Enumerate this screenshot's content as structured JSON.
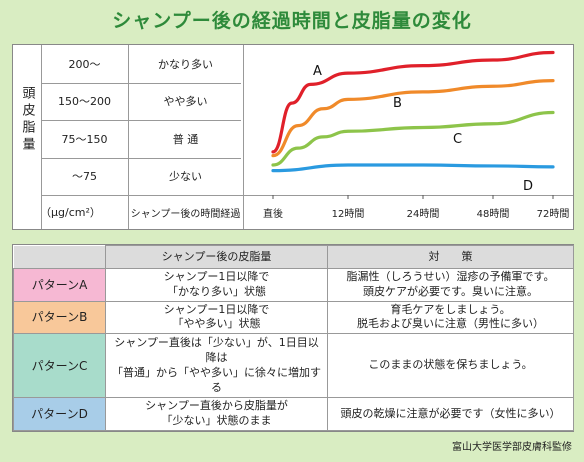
{
  "title": "シャンプー後の経過時間と皮脂量の変化",
  "chart_data": {
    "type": "line",
    "ylabel": "頭皮脂量",
    "unit_label": "（μg/cm²）",
    "xlabel": "シャンプー後の時間経過",
    "x_ticks": [
      "直後",
      "12時間",
      "24時間",
      "48時間",
      "72時間"
    ],
    "y_levels": [
      {
        "range": "200～",
        "label": "かなり多い"
      },
      {
        "range": "150～200",
        "label": "やや多い"
      },
      {
        "range": "75～150",
        "label": "普 通"
      },
      {
        "range": "～75",
        "label": "少ない"
      }
    ],
    "series": [
      {
        "name": "A",
        "color": "#e0202a",
        "x": [
          0,
          3,
          6,
          12,
          24,
          48,
          72
        ],
        "y": [
          2.3,
          4.9,
          5.9,
          6.5,
          6.9,
          7.2,
          7.6
        ]
      },
      {
        "name": "B",
        "color": "#f08a2a",
        "x": [
          0,
          4,
          8,
          12,
          24,
          48,
          72
        ],
        "y": [
          2.1,
          3.7,
          4.6,
          5.1,
          5.5,
          5.8,
          6.1
        ]
      },
      {
        "name": "C",
        "color": "#8dc44a",
        "x": [
          0,
          4,
          8,
          12,
          24,
          48,
          72
        ],
        "y": [
          1.6,
          2.5,
          3.1,
          3.4,
          3.6,
          3.8,
          4.4
        ]
      },
      {
        "name": "D",
        "color": "#2a9ae0",
        "x": [
          0,
          12,
          24,
          48,
          72
        ],
        "y": [
          1.3,
          1.6,
          1.6,
          1.55,
          1.5
        ]
      }
    ]
  },
  "table": {
    "headers": [
      "シャンプー後の皮脂量",
      "対　　策"
    ],
    "rows": [
      {
        "pattern": "パターンA",
        "color": "#f6b8d3",
        "amount": [
          "シャンプー1日以降で",
          "「かなり多い」状態"
        ],
        "measure": [
          "脂漏性（しろうせい）湿疹の予備軍です。",
          "頭皮ケアが必要です。臭いに注意。"
        ]
      },
      {
        "pattern": "パターンB",
        "color": "#f8c89a",
        "amount": [
          "シャンプー1日以降で",
          "「やや多い」状態"
        ],
        "measure": [
          "育毛ケアをしましょう。",
          "脱毛および臭いに注意（男性に多い）"
        ]
      },
      {
        "pattern": "パターンC",
        "color": "#a8dccb",
        "amount": [
          "シャンプー直後は「少ない」が、1日目以降は",
          "「普通」から「やや多い」に徐々に増加する"
        ],
        "measure": [
          "このままの状態を保ちましょう。"
        ]
      },
      {
        "pattern": "パターンD",
        "color": "#a8cde8",
        "amount": [
          "シャンプー直後から皮脂量が",
          "「少ない」状態のまま"
        ],
        "measure": [
          "頭皮の乾燥に注意が必要です（女性に多い）"
        ]
      }
    ]
  },
  "credit": "富山大学医学部皮膚科監修"
}
